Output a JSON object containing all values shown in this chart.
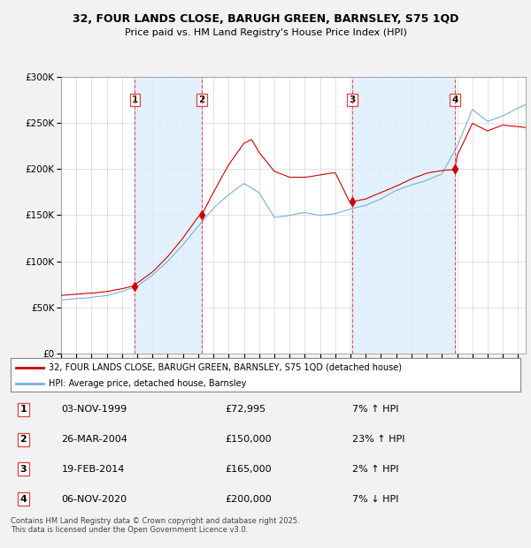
{
  "title_line1": "32, FOUR LANDS CLOSE, BARUGH GREEN, BARNSLEY, S75 1QD",
  "title_line2": "Price paid vs. HM Land Registry's House Price Index (HPI)",
  "ylim": [
    0,
    300000
  ],
  "xlim_start": 1995.0,
  "xlim_end": 2025.5,
  "sale_dates": [
    1999.84,
    2004.23,
    2014.12,
    2020.85
  ],
  "sale_prices": [
    72995,
    150000,
    165000,
    200000
  ],
  "sale_labels": [
    "1",
    "2",
    "3",
    "4"
  ],
  "legend_line1": "32, FOUR LANDS CLOSE, BARUGH GREEN, BARNSLEY, S75 1QD (detached house)",
  "legend_line2": "HPI: Average price, detached house, Barnsley",
  "line_color_red": "#cc0000",
  "line_color_blue": "#7ab0d4",
  "shade_color": "#ddeeff",
  "table_rows": [
    [
      "1",
      "03-NOV-1999",
      "£72,995",
      "7% ↑ HPI"
    ],
    [
      "2",
      "26-MAR-2004",
      "£150,000",
      "23% ↑ HPI"
    ],
    [
      "3",
      "19-FEB-2014",
      "£165,000",
      "2% ↑ HPI"
    ],
    [
      "4",
      "06-NOV-2020",
      "£200,000",
      "7% ↓ HPI"
    ]
  ],
  "footer": "Contains HM Land Registry data © Crown copyright and database right 2025.\nThis data is licensed under the Open Government Licence v3.0.",
  "background_color": "#f2f2f2",
  "plot_bg_color": "#ffffff",
  "vline_color": "#dd4444",
  "grid_color": "#cccccc"
}
